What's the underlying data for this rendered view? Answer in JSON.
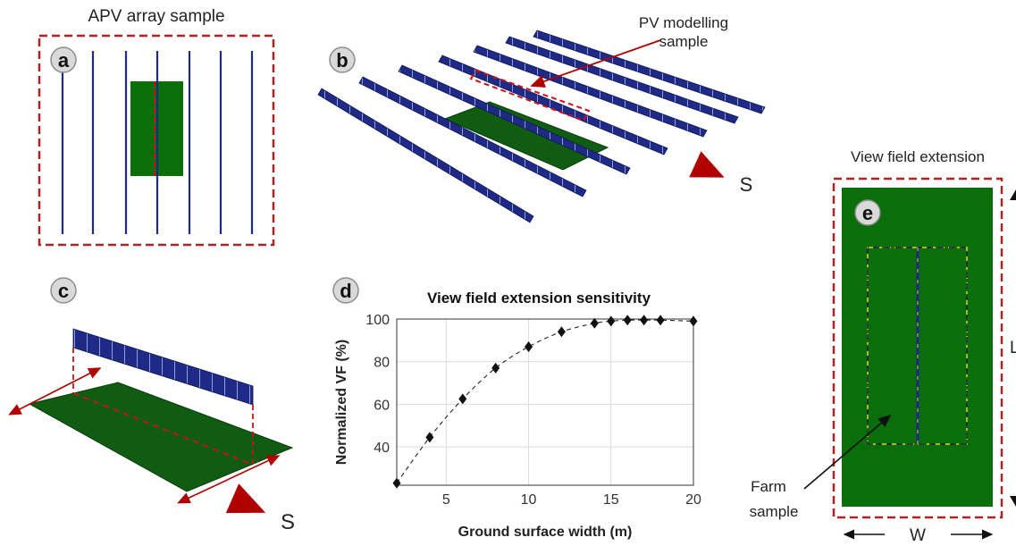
{
  "panel_a": {
    "title": "APV array sample",
    "badge": "a"
  },
  "panel_b": {
    "badge": "b",
    "annotation_line1": "PV modelling",
    "annotation_line2": "sample",
    "direction": "S"
  },
  "panel_c": {
    "badge": "c",
    "direction": "S"
  },
  "panel_d": {
    "badge": "d"
  },
  "panel_e": {
    "title": "View field extension",
    "badge": "e",
    "farm_line1": "Farm",
    "farm_line2": "sample",
    "width_label": "W",
    "length_label": "L"
  },
  "colors": {
    "panel_blue": "#1f2a86",
    "ground_green": "#0a6e0a",
    "frame_red": "#b22222",
    "arrow_red": "#a01010"
  },
  "chart_data": {
    "type": "line",
    "title": "View field extension sensitivity",
    "xlabel": "Ground surface width (m)",
    "ylabel": "Normalized VF (%)",
    "x": [
      2,
      4,
      6,
      8,
      10,
      12,
      14,
      15,
      16,
      17,
      18,
      20
    ],
    "values": [
      23,
      44.5,
      62.5,
      77,
      87,
      94,
      98,
      99,
      99.5,
      99.5,
      99.5,
      99
    ],
    "xticks": [
      "5",
      "10",
      "15",
      "20"
    ],
    "yticks": [
      "40",
      "60",
      "80",
      "100"
    ],
    "xlim": [
      2,
      20
    ],
    "ylim": [
      22,
      100
    ],
    "grid": true,
    "line_style": "dashed",
    "marker": "diamond"
  }
}
